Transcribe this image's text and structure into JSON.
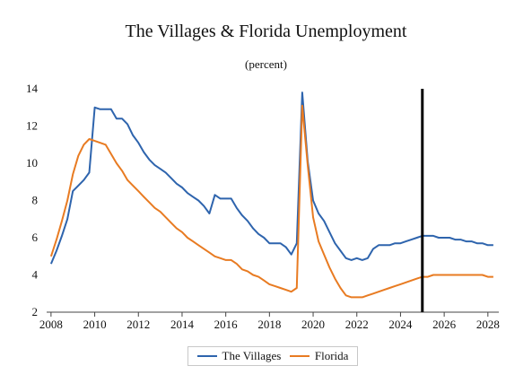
{
  "chart_data": {
    "type": "line",
    "title": "The Villages & Florida Unemployment",
    "subtitle": "(percent)",
    "xlabel": "",
    "ylabel": "",
    "xlim": [
      2007.8,
      2028.5
    ],
    "ylim": [
      2,
      14
    ],
    "yticks": [
      2,
      4,
      6,
      8,
      10,
      12,
      14
    ],
    "xticks": [
      2008,
      2010,
      2012,
      2014,
      2016,
      2018,
      2020,
      2022,
      2024,
      2026,
      2028
    ],
    "grid": false,
    "legend_position": "bottom",
    "forecast_line_x": 2025.0,
    "series": [
      {
        "name": "The Villages",
        "color": "#2e64ad",
        "x": [
          2008.0,
          2008.25,
          2008.5,
          2008.75,
          2009.0,
          2009.25,
          2009.5,
          2009.75,
          2010.0,
          2010.25,
          2010.5,
          2010.75,
          2011.0,
          2011.25,
          2011.5,
          2011.75,
          2012.0,
          2012.25,
          2012.5,
          2012.75,
          2013.0,
          2013.25,
          2013.5,
          2013.75,
          2014.0,
          2014.25,
          2014.5,
          2014.75,
          2015.0,
          2015.25,
          2015.5,
          2015.75,
          2016.0,
          2016.25,
          2016.5,
          2016.75,
          2017.0,
          2017.25,
          2017.5,
          2017.75,
          2018.0,
          2018.25,
          2018.5,
          2018.75,
          2019.0,
          2019.25,
          2019.5,
          2019.75,
          2020.0,
          2020.25,
          2020.5,
          2020.75,
          2021.0,
          2021.25,
          2021.5,
          2021.75,
          2022.0,
          2022.25,
          2022.5,
          2022.75,
          2023.0,
          2023.25,
          2023.5,
          2023.75,
          2024.0,
          2024.25,
          2024.5,
          2024.75,
          2025.0,
          2025.25,
          2025.5,
          2025.75,
          2026.0,
          2026.25,
          2026.5,
          2026.75,
          2027.0,
          2027.25,
          2027.5,
          2027.75,
          2028.0,
          2028.25
        ],
        "values": [
          4.6,
          5.3,
          6.1,
          7.0,
          8.5,
          8.8,
          9.1,
          9.5,
          13.0,
          12.9,
          12.9,
          12.9,
          12.4,
          12.4,
          12.1,
          11.5,
          11.1,
          10.6,
          10.2,
          9.9,
          9.7,
          9.5,
          9.2,
          8.9,
          8.7,
          8.4,
          8.2,
          8.0,
          7.7,
          7.3,
          8.3,
          8.1,
          8.1,
          8.1,
          7.6,
          7.2,
          6.9,
          6.5,
          6.2,
          6.0,
          5.7,
          5.7,
          5.7,
          5.5,
          5.1,
          5.7,
          13.8,
          10.1,
          8.0,
          7.3,
          6.9,
          6.3,
          5.7,
          5.3,
          4.9,
          4.8,
          4.9,
          4.8,
          4.9,
          5.4,
          5.6,
          5.6,
          5.6,
          5.7,
          5.7,
          5.8,
          5.9,
          6.0,
          6.1,
          6.1,
          6.1,
          6.0,
          6.0,
          6.0,
          5.9,
          5.9,
          5.8,
          5.8,
          5.7,
          5.7,
          5.6,
          5.6
        ]
      },
      {
        "name": "Florida",
        "color": "#e87b22",
        "x": [
          2008.0,
          2008.25,
          2008.5,
          2008.75,
          2009.0,
          2009.25,
          2009.5,
          2009.75,
          2010.0,
          2010.25,
          2010.5,
          2010.75,
          2011.0,
          2011.25,
          2011.5,
          2011.75,
          2012.0,
          2012.25,
          2012.5,
          2012.75,
          2013.0,
          2013.25,
          2013.5,
          2013.75,
          2014.0,
          2014.25,
          2014.5,
          2014.75,
          2015.0,
          2015.25,
          2015.5,
          2015.75,
          2016.0,
          2016.25,
          2016.5,
          2016.75,
          2017.0,
          2017.25,
          2017.5,
          2017.75,
          2018.0,
          2018.25,
          2018.5,
          2018.75,
          2019.0,
          2019.25,
          2019.5,
          2019.75,
          2020.0,
          2020.25,
          2020.5,
          2020.75,
          2021.0,
          2021.25,
          2021.5,
          2021.75,
          2022.0,
          2022.25,
          2022.5,
          2022.75,
          2023.0,
          2023.25,
          2023.5,
          2023.75,
          2024.0,
          2024.25,
          2024.5,
          2024.75,
          2025.0,
          2025.25,
          2025.5,
          2025.75,
          2026.0,
          2026.25,
          2026.5,
          2026.75,
          2027.0,
          2027.25,
          2027.5,
          2027.75,
          2028.0,
          2028.25
        ],
        "values": [
          5.0,
          5.9,
          6.9,
          8.0,
          9.4,
          10.4,
          11.0,
          11.3,
          11.2,
          11.1,
          11.0,
          10.5,
          10.0,
          9.6,
          9.1,
          8.8,
          8.5,
          8.2,
          7.9,
          7.6,
          7.4,
          7.1,
          6.8,
          6.5,
          6.3,
          6.0,
          5.8,
          5.6,
          5.4,
          5.2,
          5.0,
          4.9,
          4.8,
          4.8,
          4.6,
          4.3,
          4.2,
          4.0,
          3.9,
          3.7,
          3.5,
          3.4,
          3.3,
          3.2,
          3.1,
          3.3,
          13.1,
          9.9,
          7.1,
          5.8,
          5.1,
          4.4,
          3.8,
          3.3,
          2.9,
          2.8,
          2.8,
          2.8,
          2.9,
          3.0,
          3.1,
          3.2,
          3.3,
          3.4,
          3.5,
          3.6,
          3.7,
          3.8,
          3.9,
          3.9,
          4.0,
          4.0,
          4.0,
          4.0,
          4.0,
          4.0,
          4.0,
          4.0,
          4.0,
          4.0,
          3.9,
          3.9
        ]
      }
    ]
  }
}
